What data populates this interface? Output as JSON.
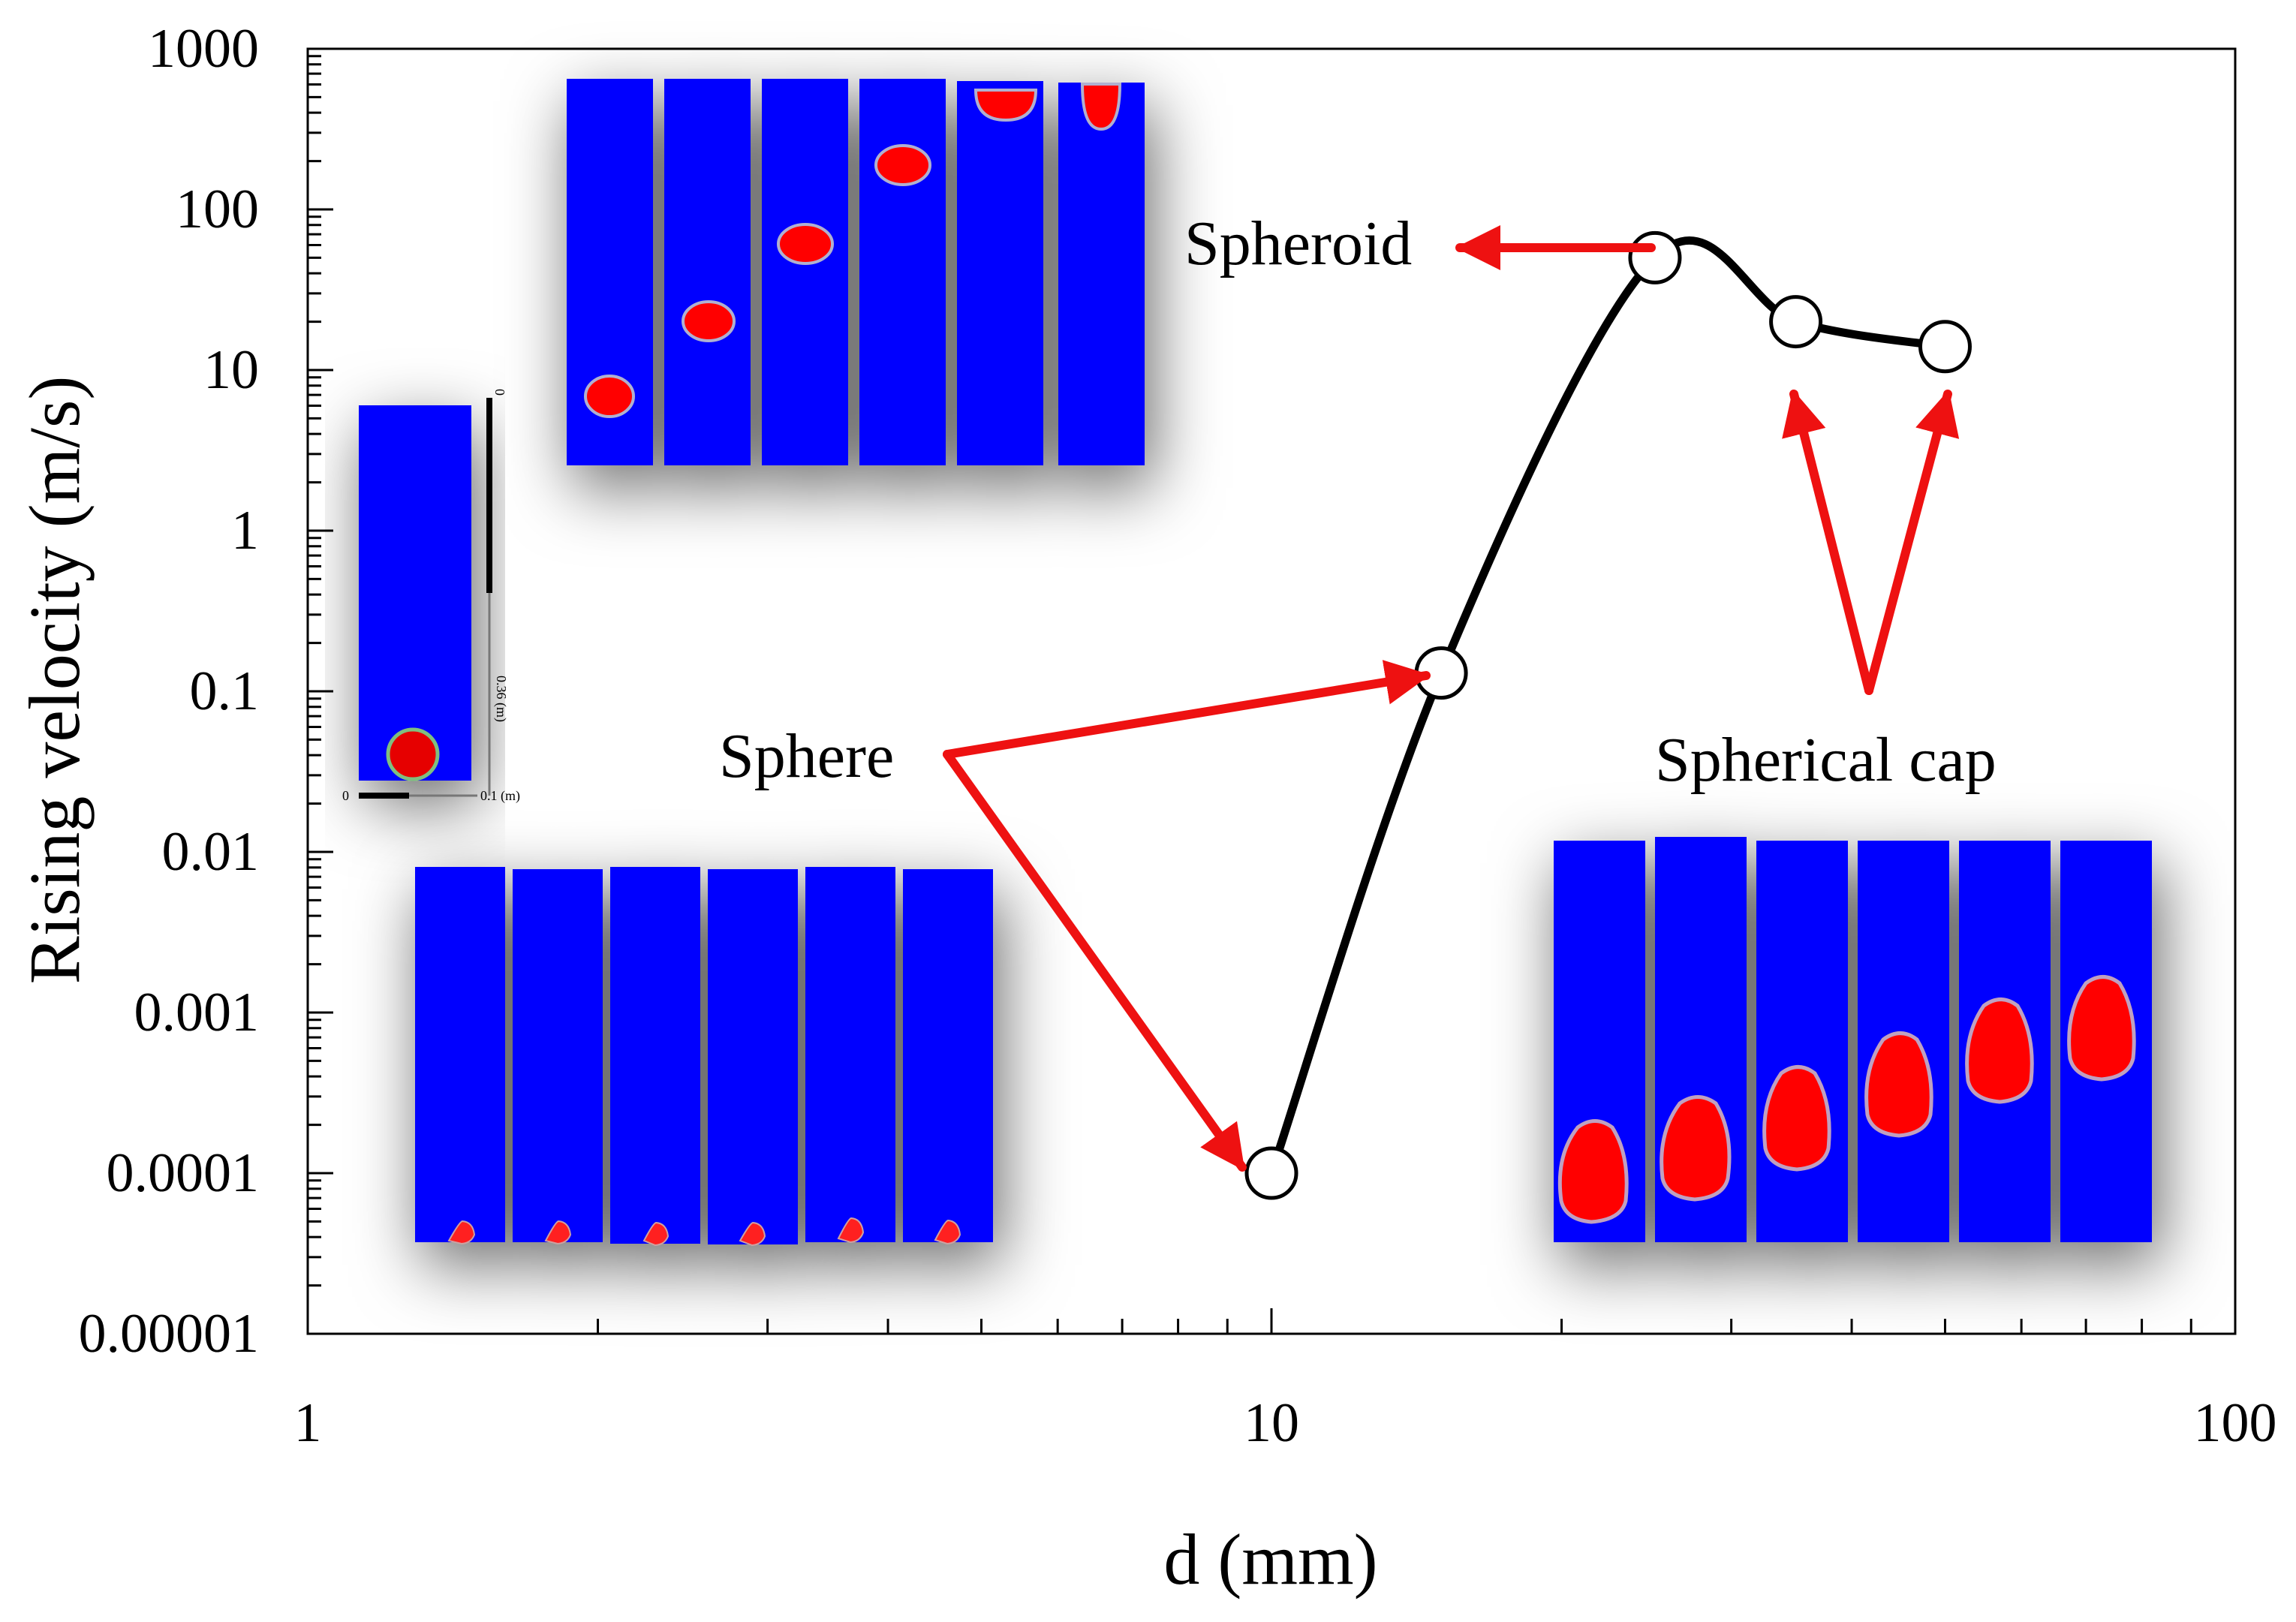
{
  "chart_data": {
    "type": "line",
    "xlabel": "d (mm)",
    "ylabel": "Rising velocity (m/s)",
    "xscale": "log",
    "yscale": "log",
    "xlim": [
      1,
      100
    ],
    "ylim": [
      1e-05,
      1000
    ],
    "x_tick_labels": [
      "1",
      "10",
      "100"
    ],
    "y_tick_labels": [
      "0.00001",
      "0.0001",
      "0.001",
      "0.01",
      "0.1",
      "1",
      "10",
      "100",
      "1000"
    ],
    "series": [
      {
        "name": "Rising velocity",
        "x": [
          10,
          15,
          25,
          35,
          50
        ],
        "y": [
          0.0001,
          0.13,
          50,
          20,
          14
        ]
      }
    ],
    "annotations": [
      {
        "text": "Sphere",
        "targets": [
          [
            15,
            0.13
          ],
          [
            10,
            0.0001
          ]
        ]
      },
      {
        "text": "Spheroid",
        "targets": [
          [
            25,
            50
          ]
        ]
      },
      {
        "text": "Spherical cap",
        "targets": [
          [
            35,
            20
          ],
          [
            50,
            14
          ]
        ]
      }
    ],
    "inset_domain": {
      "height_label": "0.36 (m)",
      "width_label": "0.1 (m)",
      "zero_x": "0",
      "zero_y": "0"
    }
  },
  "colors": {
    "fluid": "#0000ff",
    "bubble": "#ff0000",
    "arrow": "#ee1111",
    "line": "#000000"
  }
}
